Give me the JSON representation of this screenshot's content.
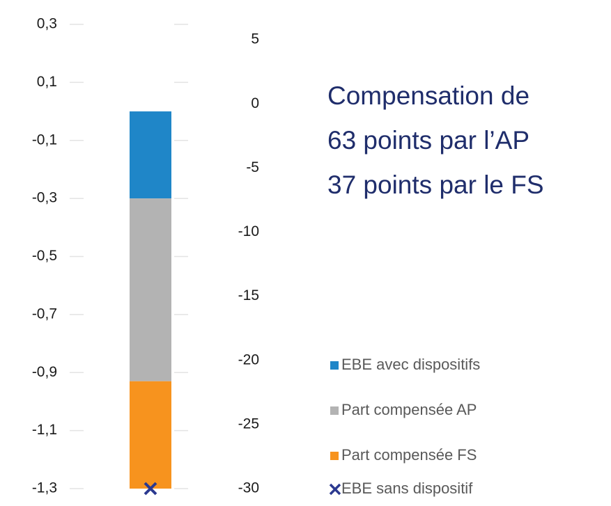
{
  "chart_data": {
    "type": "bar",
    "stacked": true,
    "categories": [
      null
    ],
    "series": [
      {
        "name": "EBE avec dispositifs",
        "color": "#1f86c8",
        "values": [
          -0.3
        ]
      },
      {
        "name": "Part compensée AP",
        "color": "#b3b3b3",
        "values": [
          -0.63
        ]
      },
      {
        "name": "Part compensée FS",
        "color": "#f7931e",
        "values": [
          -0.37
        ]
      },
      {
        "name": "EBE sans dispositif",
        "color": "#2b3990",
        "values": [
          -1.3
        ],
        "marker": "x"
      }
    ],
    "ylim": [
      -1.3,
      0.3
    ],
    "yticks": [
      {
        "value": 0.3,
        "label": "0,3"
      },
      {
        "value": 0.1,
        "label": "0,1"
      },
      {
        "value": -0.1,
        "label": "-0,1"
      },
      {
        "value": -0.3,
        "label": "-0,3"
      },
      {
        "value": -0.5,
        "label": "-0,5"
      },
      {
        "value": -0.7,
        "label": "-0,7"
      },
      {
        "value": -0.9,
        "label": "-0,9"
      },
      {
        "value": -1.1,
        "label": "-1,1"
      },
      {
        "value": -1.3,
        "label": "-1,3"
      }
    ],
    "y2lim": [
      -30,
      6.2
    ],
    "y2ticks": [
      5,
      0,
      -5,
      -10,
      -15,
      -20,
      -25,
      -30
    ],
    "grid": true,
    "legend": "bottom-right",
    "annotation": [
      "Compensation de",
      "63 points par l’AP",
      "37 points par le FS"
    ],
    "annotation_color": "#1f2d6b"
  }
}
